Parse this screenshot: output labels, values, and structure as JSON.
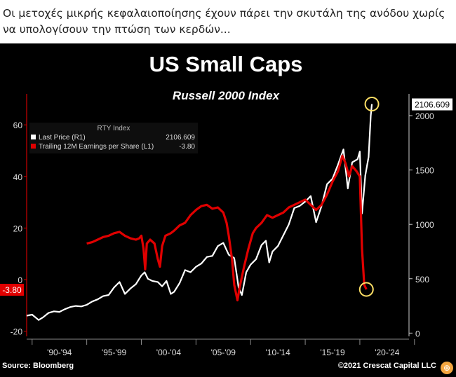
{
  "caption": "Οι μετοχές μικρής κεφαλαιοποίησης έχουν πάρει την σκυτάλη της ανόδου χωρίς να υπολογίσουν την πτώση των κερδών...",
  "chart_data": {
    "type": "line",
    "title": "US Small Caps",
    "subtitle": "Russell 2000 Index",
    "legend_title": "RTY Index",
    "legend_placement": "top-left",
    "x_ticks": [
      "'90-'94",
      "'95-'99",
      "'00-'04",
      "'05-'09",
      "'10-'14",
      "'15-'19",
      "'20-'24"
    ],
    "xlim": [
      1989.5,
      2024.5
    ],
    "left_axis": {
      "ylim": [
        -22,
        72
      ],
      "ticks": [
        -20,
        0,
        20,
        40,
        60
      ]
    },
    "right_axis": {
      "ylim": [
        -30,
        2200
      ],
      "ticks": [
        0,
        500,
        1000,
        1500,
        2000
      ]
    },
    "series": [
      {
        "name": "Last Price  (R1)",
        "axis": "right",
        "last_value_label": "2106.609",
        "last_value": 2106.609,
        "color": "#ffffff",
        "points": [
          [
            1989.5,
            160
          ],
          [
            1990.0,
            170
          ],
          [
            1990.6,
            120
          ],
          [
            1991.0,
            145
          ],
          [
            1991.5,
            185
          ],
          [
            1992.0,
            200
          ],
          [
            1992.5,
            195
          ],
          [
            1993.0,
            220
          ],
          [
            1993.5,
            240
          ],
          [
            1994.0,
            250
          ],
          [
            1994.5,
            245
          ],
          [
            1995.0,
            260
          ],
          [
            1995.5,
            290
          ],
          [
            1996.0,
            310
          ],
          [
            1996.5,
            340
          ],
          [
            1997.0,
            350
          ],
          [
            1997.5,
            420
          ],
          [
            1998.0,
            470
          ],
          [
            1998.5,
            360
          ],
          [
            1999.0,
            410
          ],
          [
            1999.5,
            450
          ],
          [
            2000.0,
            530
          ],
          [
            2000.3,
            560
          ],
          [
            2000.6,
            500
          ],
          [
            2001.0,
            480
          ],
          [
            2001.5,
            470
          ],
          [
            2001.9,
            430
          ],
          [
            2002.3,
            480
          ],
          [
            2002.7,
            360
          ],
          [
            2003.0,
            380
          ],
          [
            2003.5,
            460
          ],
          [
            2004.0,
            580
          ],
          [
            2004.5,
            560
          ],
          [
            2005.0,
            610
          ],
          [
            2005.5,
            640
          ],
          [
            2006.0,
            700
          ],
          [
            2006.5,
            710
          ],
          [
            2007.0,
            800
          ],
          [
            2007.5,
            830
          ],
          [
            2008.0,
            720
          ],
          [
            2008.5,
            690
          ],
          [
            2008.9,
            420
          ],
          [
            2009.2,
            350
          ],
          [
            2009.6,
            560
          ],
          [
            2010.0,
            630
          ],
          [
            2010.5,
            680
          ],
          [
            2011.0,
            810
          ],
          [
            2011.4,
            850
          ],
          [
            2011.7,
            650
          ],
          [
            2012.0,
            750
          ],
          [
            2012.5,
            800
          ],
          [
            2013.0,
            900
          ],
          [
            2013.5,
            1000
          ],
          [
            2014.0,
            1150
          ],
          [
            2014.5,
            1170
          ],
          [
            2015.0,
            1210
          ],
          [
            2015.5,
            1260
          ],
          [
            2016.0,
            1020
          ],
          [
            2016.5,
            1170
          ],
          [
            2017.0,
            1370
          ],
          [
            2017.5,
            1420
          ],
          [
            2018.0,
            1550
          ],
          [
            2018.5,
            1690
          ],
          [
            2018.9,
            1330
          ],
          [
            2019.3,
            1570
          ],
          [
            2019.8,
            1600
          ],
          [
            2020.0,
            1670
          ],
          [
            2020.2,
            1100
          ],
          [
            2020.5,
            1450
          ],
          [
            2020.8,
            1620
          ],
          [
            2021.0,
            2000
          ],
          [
            2021.1,
            2106.609
          ]
        ]
      },
      {
        "name": "Trailing 12M Earnings per Share  (L1)",
        "axis": "left",
        "last_value_label": "-3.80",
        "last_value": -3.8,
        "color": "#e00000",
        "points": [
          [
            1995.0,
            14
          ],
          [
            1995.5,
            14.5
          ],
          [
            1996.0,
            15.5
          ],
          [
            1996.5,
            16.5
          ],
          [
            1997.0,
            17
          ],
          [
            1997.5,
            18
          ],
          [
            1998.0,
            18.5
          ],
          [
            1998.5,
            17
          ],
          [
            1999.0,
            16
          ],
          [
            1999.5,
            15.5
          ],
          [
            1999.8,
            16
          ],
          [
            2000.0,
            17
          ],
          [
            2000.2,
            12
          ],
          [
            2000.35,
            4
          ],
          [
            2000.5,
            14
          ],
          [
            2000.8,
            15.5
          ],
          [
            2001.2,
            14
          ],
          [
            2001.5,
            8
          ],
          [
            2001.7,
            5
          ],
          [
            2001.9,
            13
          ],
          [
            2002.2,
            17
          ],
          [
            2002.7,
            18
          ],
          [
            2003.0,
            19
          ],
          [
            2003.5,
            21
          ],
          [
            2004.0,
            22
          ],
          [
            2004.5,
            25
          ],
          [
            2005.0,
            27
          ],
          [
            2005.5,
            28.5
          ],
          [
            2006.0,
            29
          ],
          [
            2006.5,
            27.5
          ],
          [
            2007.0,
            28
          ],
          [
            2007.5,
            26
          ],
          [
            2007.8,
            22
          ],
          [
            2008.0,
            17
          ],
          [
            2008.3,
            8
          ],
          [
            2008.5,
            -2
          ],
          [
            2008.8,
            -8
          ],
          [
            2009.0,
            -3
          ],
          [
            2009.4,
            5
          ],
          [
            2009.8,
            12
          ],
          [
            2010.2,
            18
          ],
          [
            2010.5,
            20
          ],
          [
            2011.0,
            22
          ],
          [
            2011.5,
            25
          ],
          [
            2012.0,
            24
          ],
          [
            2012.5,
            25
          ],
          [
            2013.0,
            26
          ],
          [
            2013.5,
            28
          ],
          [
            2014.0,
            29
          ],
          [
            2014.5,
            30
          ],
          [
            2015.0,
            31
          ],
          [
            2015.5,
            29
          ],
          [
            2016.0,
            27
          ],
          [
            2016.5,
            29
          ],
          [
            2017.0,
            33
          ],
          [
            2017.5,
            38
          ],
          [
            2018.0,
            42
          ],
          [
            2018.4,
            48
          ],
          [
            2018.7,
            45
          ],
          [
            2019.0,
            40
          ],
          [
            2019.3,
            44
          ],
          [
            2019.7,
            42
          ],
          [
            2020.0,
            40
          ],
          [
            2020.2,
            12
          ],
          [
            2020.4,
            -2
          ],
          [
            2020.6,
            -3.8
          ]
        ]
      }
    ],
    "highlights": [
      {
        "series": "Last Price  (R1)",
        "x": 2021.1,
        "y": 2106.609,
        "color": "#ffe066"
      },
      {
        "series": "Trailing 12M Earnings per Share  (L1)",
        "x": 2020.6,
        "y": -3.8,
        "color": "#ffe066"
      }
    ],
    "source": "Source: Bloomberg",
    "credit": "©2021 Crescat Capital LLC"
  }
}
